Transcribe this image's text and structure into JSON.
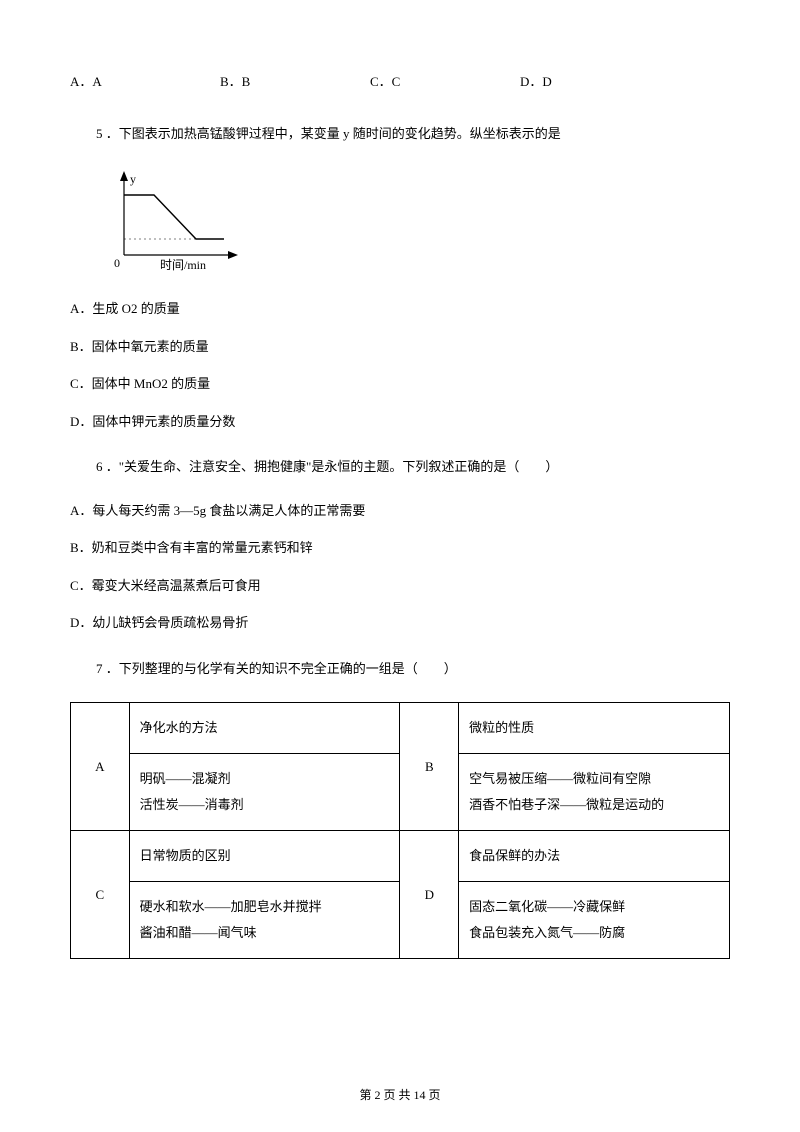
{
  "top_options": {
    "a": "A．A",
    "b": "B．B",
    "c": "C．C",
    "d": "D．D"
  },
  "q5": {
    "text": "5 ．下图表示加热高锰酸钾过程中，某变量 y 随时间的变化趋势。纵坐标表示的是",
    "chart": {
      "y_label": "y",
      "x_label": "时间/min",
      "origin_label": "0",
      "axis_color": "#000000",
      "line_color": "#000000",
      "bg_color": "#ffffff",
      "width": 150,
      "height": 110,
      "points": [
        [
          18,
          28
        ],
        [
          48,
          28
        ],
        [
          90,
          72
        ],
        [
          118,
          72
        ]
      ]
    },
    "answers": {
      "a": "A．生成 O2 的质量",
      "b": "B．固体中氧元素的质量",
      "c": "C．固体中 MnO2 的质量",
      "d": "D．固体中钾元素的质量分数"
    }
  },
  "q6": {
    "text": "6 ．\"关爱生命、注意安全、拥抱健康\"是永恒的主题。下列叙述正确的是（　　）",
    "answers": {
      "a": "A．每人每天约需 3—5g 食盐以满足人体的正常需要",
      "b": "B．奶和豆类中含有丰富的常量元素钙和锌",
      "c": "C．霉变大米经高温蒸煮后可食用",
      "d": "D．幼儿缺钙会骨质疏松易骨折"
    }
  },
  "q7": {
    "text": "7 ．下列整理的与化学有关的知识不完全正确的一组是（　　）",
    "table": {
      "a": {
        "label": "A",
        "header": "净化水的方法",
        "body": "明矾——混凝剂\n活性炭——消毒剂"
      },
      "b": {
        "label": "B",
        "header": "微粒的性质",
        "body": "空气易被压缩——微粒间有空隙\n酒香不怕巷子深——微粒是运动的"
      },
      "c": {
        "label": "C",
        "header": "日常物质的区别",
        "body": "硬水和软水——加肥皂水并搅拌\n酱油和醋——闻气味"
      },
      "d": {
        "label": "D",
        "header": "食品保鲜的办法",
        "body": "固态二氧化碳——冷藏保鲜\n食品包装充入氮气——防腐"
      }
    }
  },
  "footer": "第 2 页 共 14 页"
}
